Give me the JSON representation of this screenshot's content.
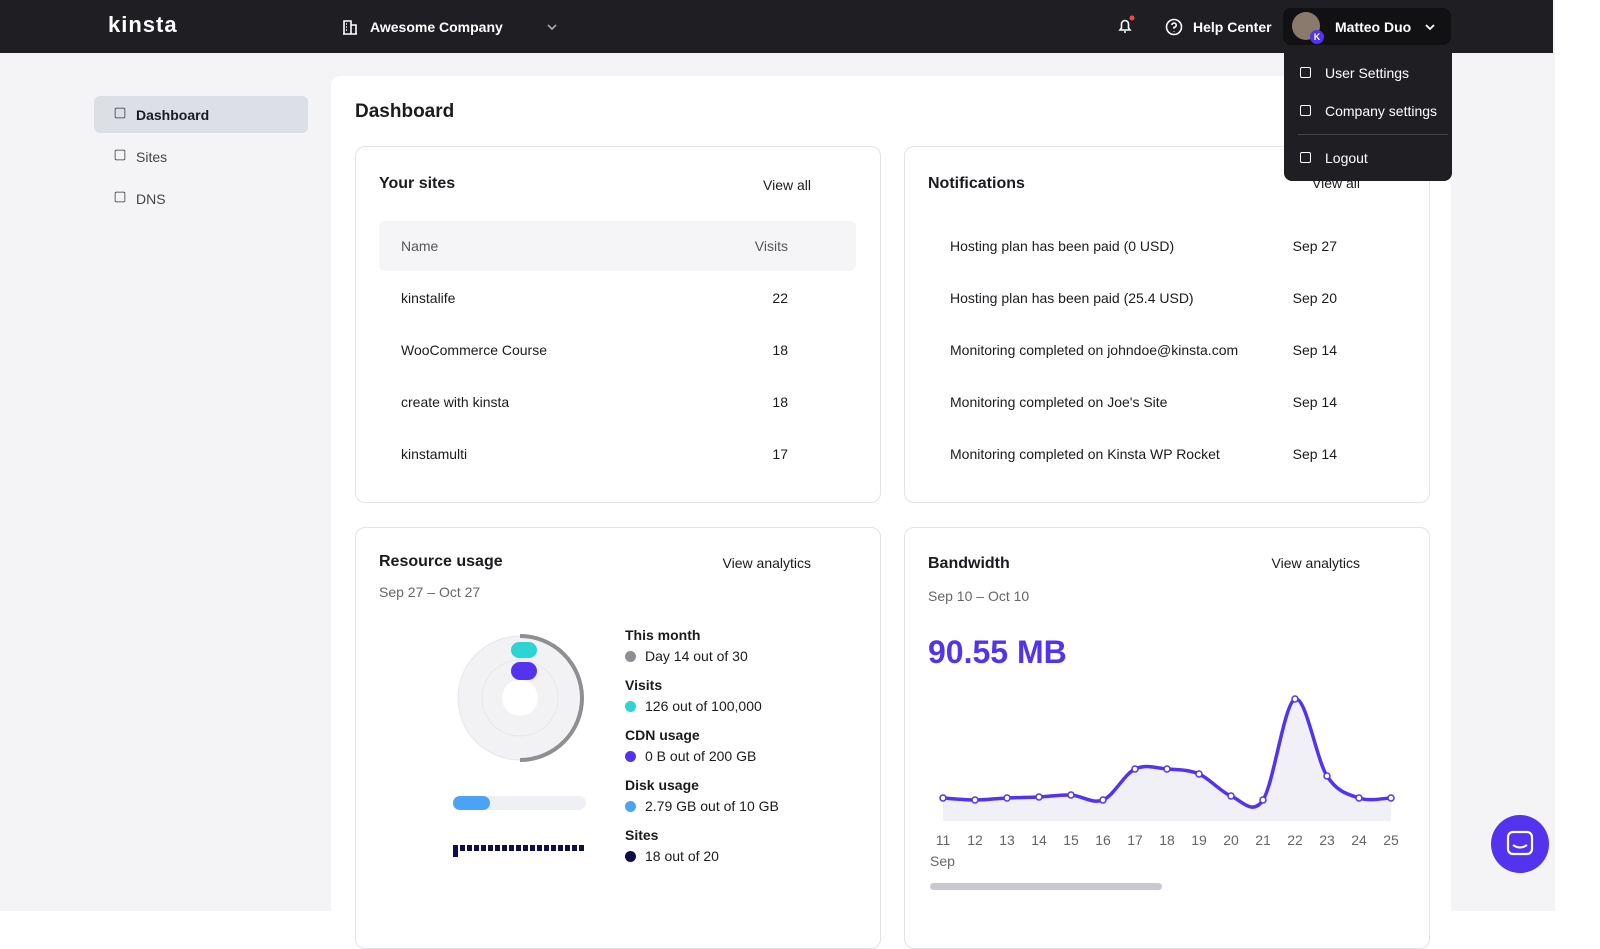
{
  "topbar": {
    "logo": "kinsta",
    "company": "Awesome Company",
    "help": "Help Center",
    "user": "Matteo Duo",
    "avatar_badge": "K"
  },
  "user_menu": [
    "User Settings",
    "Company settings",
    "Logout"
  ],
  "sidebar": [
    "Dashboard",
    "Sites",
    "DNS"
  ],
  "page_title": "Dashboard",
  "sites": {
    "title": "Your sites",
    "link": "View all",
    "header": [
      "Name",
      "Visits"
    ],
    "rows": [
      [
        "kinstalife",
        22
      ],
      [
        "WooCommerce Course",
        18
      ],
      [
        "create with kinsta",
        18
      ],
      [
        "kinstamulti",
        17
      ]
    ]
  },
  "notifications": {
    "title": "Notifications",
    "link": "View all",
    "rows": [
      [
        "Hosting plan has been paid (0 USD)",
        "Sep 27"
      ],
      [
        "Hosting plan has been paid (25.4 USD)",
        "Sep 20"
      ],
      [
        "Monitoring completed on johndoe@kinsta.com",
        "Sep 14"
      ],
      [
        "Monitoring completed on Joe's Site",
        "Sep 14"
      ],
      [
        "Monitoring completed on Kinsta WP Rocket",
        "Sep 14"
      ]
    ]
  },
  "resource": {
    "title": "Resource usage",
    "link": "View analytics",
    "range": "Sep 27 – Oct 27",
    "items": [
      {
        "label": "This month",
        "detail": "Day 14 out of 30",
        "color": "#8e8e93"
      },
      {
        "label": "Visits",
        "detail": "126 out of 100,000",
        "color": "#2ed3d3"
      },
      {
        "label": "CDN usage",
        "detail": "0 B out of 200 GB",
        "color": "#5333ed"
      },
      {
        "label": "Disk usage",
        "detail": "2.79 GB out of 10 GB",
        "color": "#4aa3f5"
      },
      {
        "label": "Sites",
        "detail": "18 out of 20",
        "color": "#0d0e4a"
      }
    ]
  },
  "bandwidth": {
    "title": "Bandwidth",
    "link": "View analytics",
    "range": "Sep 10 – Oct 10",
    "total": "90.55 MB",
    "chart": {
      "type": "line",
      "color": "#5333ed",
      "x_caption": "Sep",
      "categories": [
        "11",
        "12",
        "13",
        "14",
        "15",
        "16",
        "17",
        "18",
        "19",
        "20",
        "21",
        "22",
        "23",
        "24",
        "25"
      ],
      "values": [
        2.3,
        2.1,
        2.3,
        2.4,
        2.6,
        2.1,
        5.2,
        5.2,
        4.7,
        2.5,
        2.1,
        12.2,
        4.5,
        2.3,
        2.3
      ]
    }
  }
}
